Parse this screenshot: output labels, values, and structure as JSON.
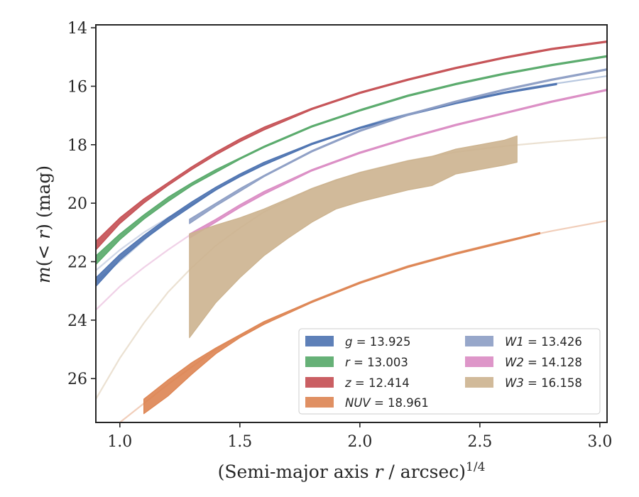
{
  "chart_data": {
    "type": "line",
    "xlabel": "(Semi-major axis r / arcsec)^1/4",
    "xlabel_parts": {
      "pre": "(Semi-major axis ",
      "var": "r",
      "post": " / arcsec)",
      "sup": "1/4"
    },
    "ylabel": "m(< r) (mag)",
    "ylabel_parts": {
      "var": "m",
      "mid": "(< ",
      "var2": "r",
      "post": ") (mag)"
    },
    "xlim": [
      0.9,
      3.03
    ],
    "ylim": [
      27.5,
      13.9
    ],
    "y_inverted": true,
    "xticks": [
      1.0,
      1.5,
      2.0,
      2.5,
      3.0
    ],
    "xtick_labels": [
      "1.0",
      "1.5",
      "2.0",
      "2.5",
      "3.0"
    ],
    "yticks": [
      14,
      16,
      18,
      20,
      22,
      24,
      26
    ],
    "ytick_labels": [
      "14",
      "16",
      "18",
      "20",
      "22",
      "24",
      "26"
    ],
    "grid": false,
    "legend_placement": "lower-right",
    "series": [
      {
        "name": "g = 13.925",
        "legend": {
          "var": "g",
          "value": "13.925"
        },
        "color": "#4c72b0",
        "x": [
          0.9,
          1.0,
          1.1,
          1.2,
          1.3,
          1.4,
          1.5,
          1.6,
          1.8,
          2.0,
          2.2,
          2.4,
          2.6,
          2.82
        ],
        "y_upper": [
          22.55,
          21.75,
          21.1,
          20.5,
          19.95,
          19.45,
          19.0,
          18.6,
          17.95,
          17.4,
          16.95,
          16.55,
          16.2,
          15.9
        ],
        "y_lower": [
          22.85,
          21.95,
          21.25,
          20.65,
          20.1,
          19.55,
          19.1,
          18.7,
          18.0,
          17.45,
          17.0,
          16.6,
          16.25,
          15.95
        ],
        "faint_x": [
          0.9,
          1.2,
          1.5,
          1.8,
          2.1,
          2.4,
          2.7,
          3.03
        ],
        "faint_y": [
          22.7,
          20.55,
          19.05,
          17.95,
          17.15,
          16.55,
          16.05,
          15.65
        ]
      },
      {
        "name": "r = 13.003",
        "legend": {
          "var": "r",
          "value": "13.003"
        },
        "color": "#55a868",
        "x": [
          0.9,
          1.0,
          1.1,
          1.2,
          1.3,
          1.4,
          1.5,
          1.6,
          1.8,
          2.0,
          2.2,
          2.4,
          2.6,
          2.8,
          3.03
        ],
        "y_upper": [
          21.8,
          21.05,
          20.4,
          19.8,
          19.3,
          18.85,
          18.45,
          18.05,
          17.35,
          16.8,
          16.3,
          15.9,
          15.55,
          15.25,
          14.95
        ],
        "y_lower": [
          22.1,
          21.25,
          20.55,
          19.95,
          19.4,
          18.95,
          18.5,
          18.1,
          17.4,
          16.85,
          16.35,
          15.95,
          15.6,
          15.3,
          15.0
        ]
      },
      {
        "name": "z = 12.414",
        "legend": {
          "var": "z",
          "value": "12.414"
        },
        "color": "#c44e52",
        "x": [
          0.9,
          1.0,
          1.1,
          1.2,
          1.3,
          1.4,
          1.5,
          1.6,
          1.8,
          2.0,
          2.2,
          2.4,
          2.6,
          2.8,
          3.03
        ],
        "y_upper": [
          21.3,
          20.5,
          19.85,
          19.3,
          18.75,
          18.25,
          17.8,
          17.4,
          16.75,
          16.2,
          15.75,
          15.35,
          15.0,
          14.7,
          14.45
        ],
        "y_lower": [
          21.6,
          20.7,
          20.0,
          19.4,
          18.85,
          18.35,
          17.9,
          17.5,
          16.8,
          16.25,
          15.8,
          15.4,
          15.05,
          14.75,
          14.5
        ]
      },
      {
        "name": "NUV = 18.961",
        "legend": {
          "var": "NUV",
          "value": "18.961"
        },
        "color": "#dd8452",
        "x": [
          1.1,
          1.2,
          1.3,
          1.4,
          1.5,
          1.6,
          1.8,
          2.0,
          2.2,
          2.4,
          2.6,
          2.75
        ],
        "y_upper": [
          26.7,
          26.05,
          25.45,
          24.95,
          24.5,
          24.05,
          23.35,
          22.7,
          22.15,
          21.7,
          21.3,
          21.0
        ],
        "y_lower": [
          27.2,
          26.6,
          25.85,
          25.15,
          24.6,
          24.15,
          23.4,
          22.75,
          22.2,
          21.75,
          21.35,
          21.05
        ],
        "faint_x": [
          1.0,
          1.2,
          1.4,
          1.6,
          1.8,
          2.0,
          2.2,
          2.4,
          2.6,
          2.8,
          3.03
        ],
        "faint_y": [
          27.5,
          26.2,
          25.0,
          24.1,
          23.35,
          22.7,
          22.15,
          21.7,
          21.3,
          20.95,
          20.6
        ]
      },
      {
        "name": "W1 = 13.426",
        "legend": {
          "var": "W1",
          "value": "13.426"
        },
        "color": "#8c9dc4",
        "x": [
          1.29,
          1.4,
          1.5,
          1.6,
          1.8,
          2.0,
          2.2,
          2.4,
          2.6,
          2.8,
          3.03
        ],
        "y_upper": [
          20.55,
          20.0,
          19.5,
          19.05,
          18.2,
          17.5,
          16.95,
          16.5,
          16.1,
          15.75,
          15.4
        ],
        "y_lower": [
          20.7,
          20.1,
          19.6,
          19.1,
          18.25,
          17.55,
          17.0,
          16.55,
          16.15,
          15.8,
          15.45
        ],
        "faint_x": [
          0.9,
          1.0,
          1.1,
          1.2,
          1.3
        ],
        "faint_y": [
          22.3,
          21.6,
          21.0,
          20.5,
          20.05
        ]
      },
      {
        "name": "W2 = 14.128",
        "legend": {
          "var": "W2",
          "value": "14.128"
        },
        "color": "#da8bc3",
        "x": [
          1.29,
          1.4,
          1.5,
          1.6,
          1.8,
          2.0,
          2.2,
          2.4,
          2.6,
          2.8,
          3.03
        ],
        "y_upper": [
          21.05,
          20.55,
          20.05,
          19.6,
          18.85,
          18.25,
          17.75,
          17.3,
          16.9,
          16.5,
          16.1
        ],
        "y_lower": [
          21.2,
          20.65,
          20.15,
          19.7,
          18.9,
          18.3,
          17.8,
          17.35,
          16.95,
          16.55,
          16.15
        ],
        "faint_x": [
          0.9,
          1.0,
          1.1,
          1.2,
          1.29
        ],
        "faint_y": [
          23.65,
          22.85,
          22.2,
          21.6,
          21.1
        ]
      },
      {
        "name": "W3 = 16.158",
        "legend": {
          "var": "W3",
          "value": "16.158"
        },
        "color": "#ccb38f",
        "x": [
          1.29,
          1.4,
          1.5,
          1.6,
          1.7,
          1.8,
          1.9,
          2.0,
          2.1,
          2.2,
          2.3,
          2.4,
          2.5,
          2.6,
          2.655
        ],
        "y_upper": [
          21.05,
          20.75,
          20.5,
          20.2,
          19.85,
          19.5,
          19.2,
          18.95,
          18.75,
          18.55,
          18.4,
          18.15,
          18.0,
          17.85,
          17.7
        ],
        "y_lower": [
          24.6,
          23.4,
          22.55,
          21.8,
          21.2,
          20.65,
          20.2,
          19.95,
          19.75,
          19.55,
          19.4,
          19.0,
          18.85,
          18.7,
          18.6
        ],
        "faint_x": [
          0.9,
          1.0,
          1.1,
          1.2,
          1.3,
          1.4,
          1.5,
          1.6,
          1.8,
          2.0,
          2.2,
          2.4,
          2.6,
          2.8,
          3.03
        ],
        "faint_y": [
          26.7,
          25.3,
          24.1,
          23.05,
          22.2,
          21.45,
          20.85,
          20.3,
          19.5,
          18.95,
          18.55,
          18.25,
          18.05,
          17.9,
          17.75
        ]
      }
    ]
  }
}
